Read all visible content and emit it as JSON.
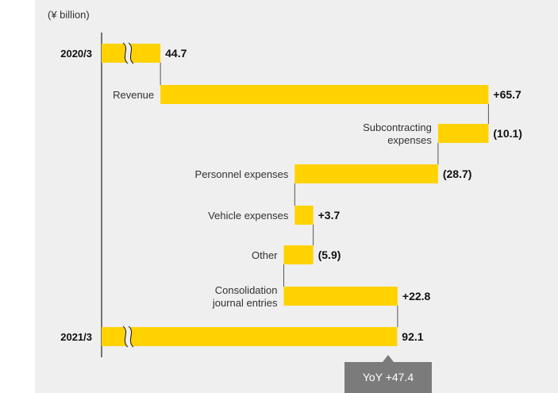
{
  "unit": "(¥ billion)",
  "callout": "YoY +47.4",
  "colors": {
    "bar": "#ffd200",
    "axis": "#222222",
    "connector": "#555555",
    "panel": "#efefef"
  },
  "icons": {
    "axis_break": "axis-break-icon"
  },
  "chart_data": {
    "type": "bar",
    "orientation": "horizontal waterfall",
    "unit": "(¥ billion)",
    "axis_break": true,
    "grid": false,
    "rows": [
      {
        "label": "2020/3",
        "kind": "total",
        "start": 0,
        "end": 44.7,
        "value_label": "44.7"
      },
      {
        "label": "Revenue",
        "kind": "delta",
        "start": 44.7,
        "end": 110.4,
        "value_label": "+65.7"
      },
      {
        "label": "Subcontracting expenses",
        "lines": [
          "Subcontracting",
          "expenses"
        ],
        "kind": "delta",
        "start": 110.4,
        "end": 100.3,
        "value_label": "(10.1)"
      },
      {
        "label": "Personnel expenses",
        "kind": "delta",
        "start": 100.3,
        "end": 71.6,
        "value_label": "(28.7)"
      },
      {
        "label": "Vehicle expenses",
        "kind": "delta",
        "start": 71.6,
        "end": 75.3,
        "value_label": "+3.7"
      },
      {
        "label": "Other",
        "kind": "delta",
        "start": 75.3,
        "end": 69.4,
        "value_label": "(5.9)"
      },
      {
        "label": "Consolidation journal entries",
        "lines": [
          "Consolidation",
          "journal entries"
        ],
        "kind": "delta",
        "start": 69.4,
        "end": 92.2,
        "value_label": "+22.8"
      },
      {
        "label": "2021/3",
        "kind": "total",
        "start": 0,
        "end": 92.1,
        "value_label": "92.1"
      }
    ]
  }
}
